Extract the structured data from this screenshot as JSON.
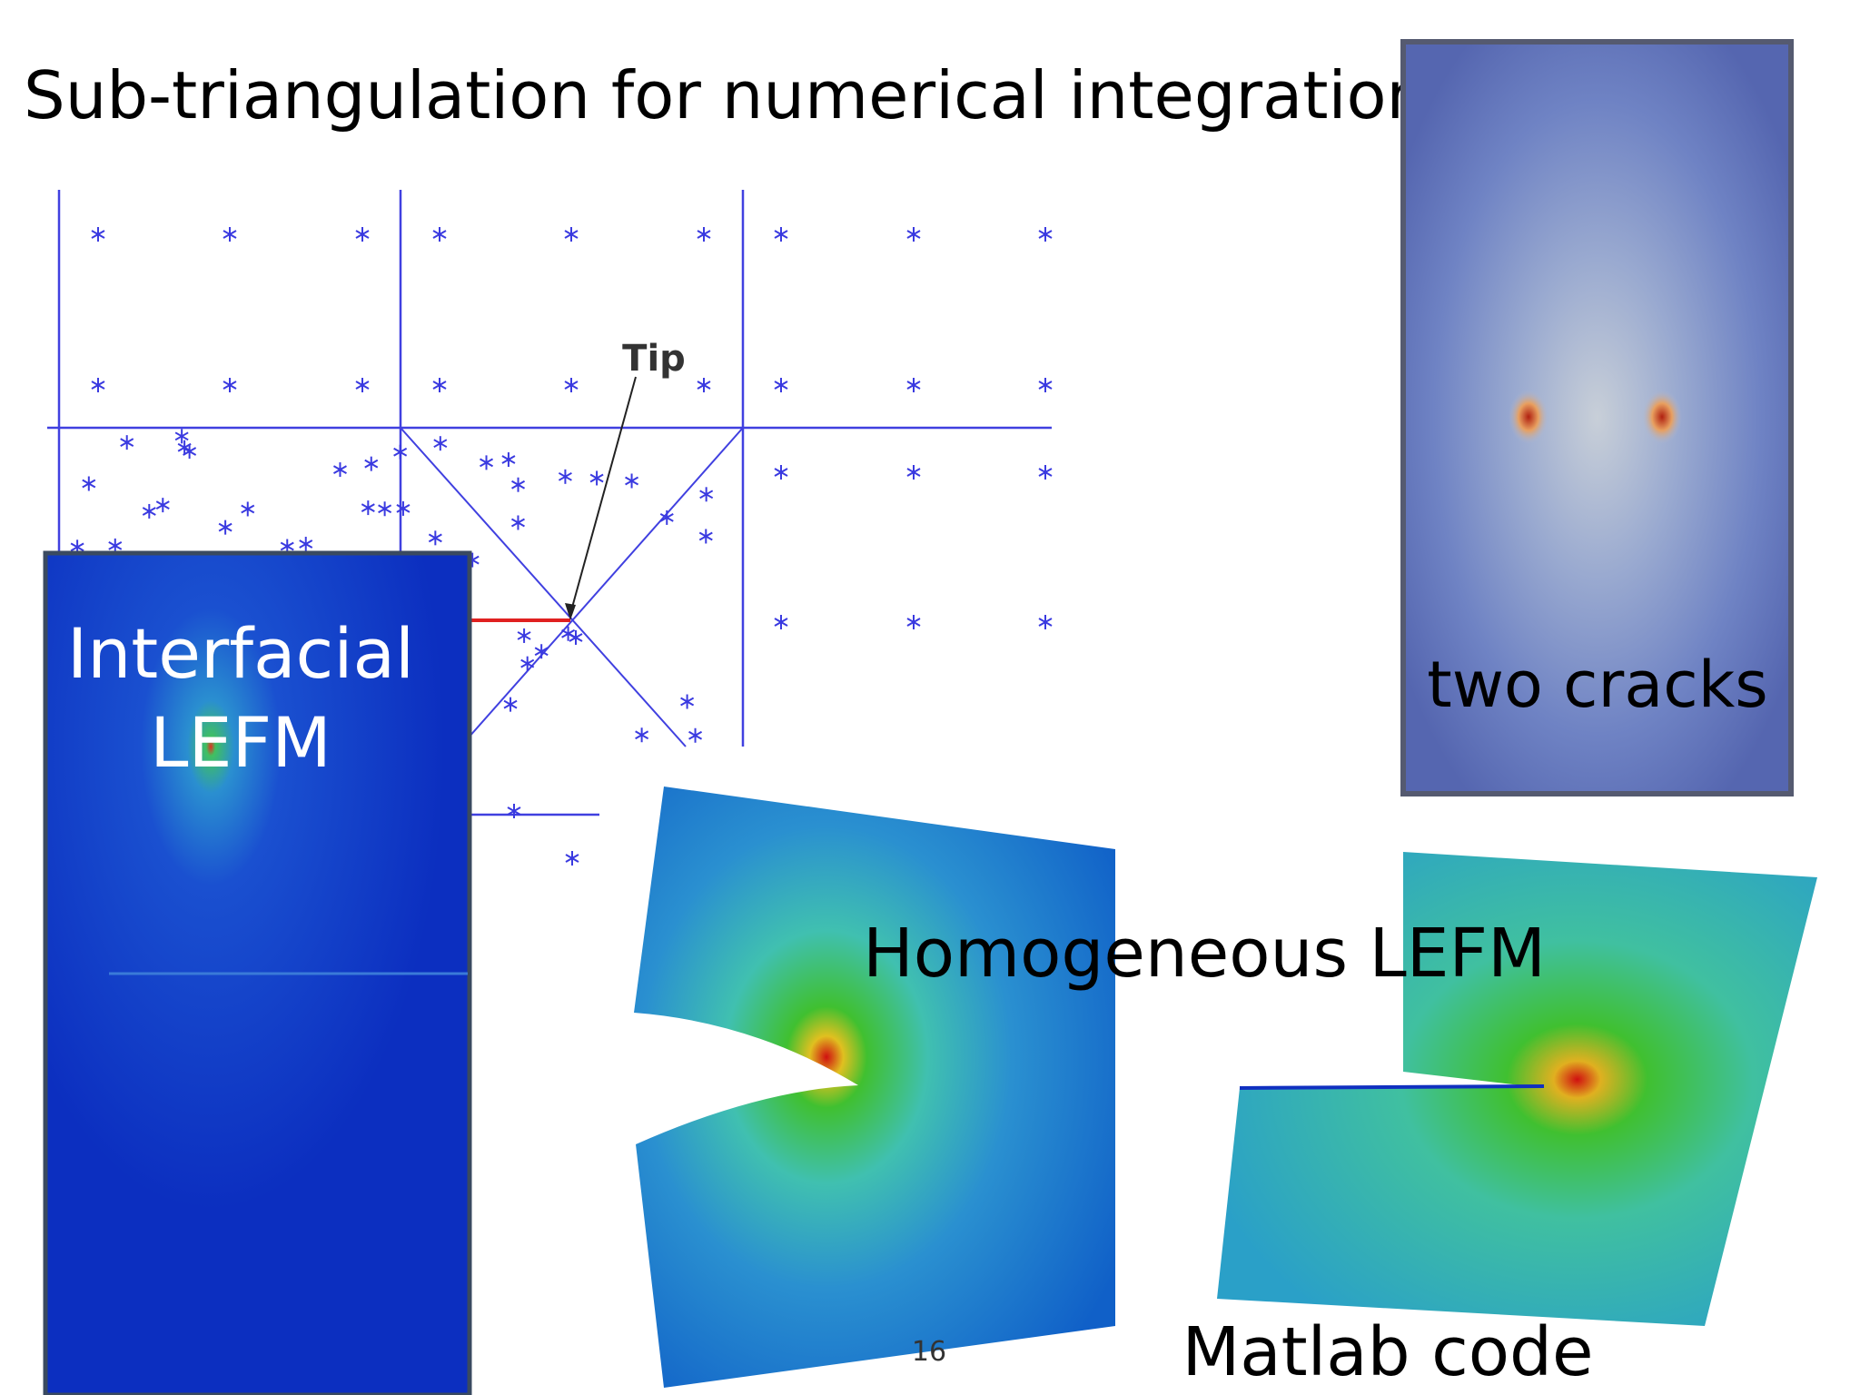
{
  "header": {
    "title": "Sub-triangulation for numerical integration"
  },
  "figures": {
    "mesh": {
      "annotation": "Tip"
    },
    "interfacial": {
      "label_lines": [
        "Interfacial",
        "LEFM"
      ]
    },
    "two_cracks": {
      "label": "two cracks"
    },
    "homogeneous": {
      "label": "Homogeneous LEFM"
    },
    "matlab": {
      "label": "Matlab code"
    }
  },
  "footer": {
    "page_number": "16"
  }
}
